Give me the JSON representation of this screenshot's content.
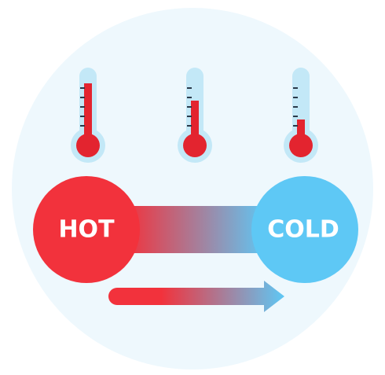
{
  "hot_label": "HOT",
  "cold_label": "COLD"
}
